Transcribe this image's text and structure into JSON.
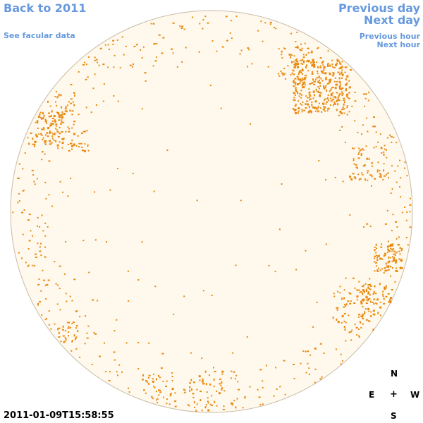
{
  "nav": {
    "back_label": "Back to 2011",
    "facular_label": "See facular data",
    "prev_day_label": "Previous day",
    "next_day_label": "Next day",
    "prev_hour_label": "Previous hour",
    "next_hour_label": "Next hour"
  },
  "timestamp": "2011-01-09T15:58:55",
  "compass": {
    "north": "N",
    "east": "E",
    "center": "+",
    "west": "W",
    "south": "S"
  },
  "colors": {
    "disk_fill": "#fff8ec",
    "disk_border": "#c8bca8",
    "facula": "#e88a10",
    "link": "#6699dd"
  }
}
